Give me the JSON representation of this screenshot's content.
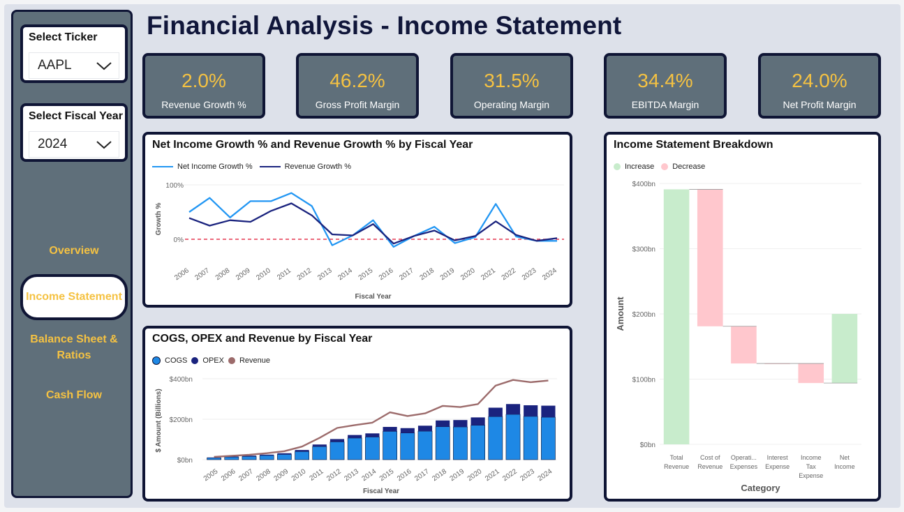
{
  "title": "Financial Analysis - Income Statement",
  "sidebar": {
    "ticker": {
      "label": "Select Ticker",
      "value": "AAPL"
    },
    "year": {
      "label": "Select Fiscal Year",
      "value": "2024"
    },
    "nav": {
      "overview": "Overview",
      "income": "Income Statement",
      "balance_line1": "Balance Sheet &",
      "balance_line2": "Ratios",
      "cashflow": "Cash Flow"
    }
  },
  "kpis": [
    {
      "value": "2.0%",
      "label": "Revenue Growth %"
    },
    {
      "value": "46.2%",
      "label": "Gross Profit Margin"
    },
    {
      "value": "31.5%",
      "label": "Operating Margin"
    },
    {
      "value": "34.4%",
      "label": "EBITDA Margin"
    },
    {
      "value": "24.0%",
      "label": "Net Profit Margin"
    }
  ],
  "colors": {
    "accent": "#f5c242",
    "navy": "#0f1535",
    "slate": "#5f6f7a",
    "net_income_line": "#2196f3",
    "revenue_line": "#1a237e",
    "cogs": "#1e88e5",
    "opex": "#1a237e",
    "revenue_curve": "#9c6b6b",
    "increase": "#c8eccc",
    "decrease": "#ffc7cd"
  },
  "chart_data": [
    {
      "type": "line",
      "title": "Net Income Growth % and Revenue Growth % by Fiscal Year",
      "xlabel": "Fiscal Year",
      "ylabel": "Growth %",
      "y_ticks": [
        "100%",
        "0%"
      ],
      "ylim": [
        -20,
        100
      ],
      "reference_line": 0,
      "x": [
        2006,
        2007,
        2008,
        2009,
        2010,
        2011,
        2012,
        2013,
        2014,
        2015,
        2016,
        2017,
        2018,
        2019,
        2020,
        2021,
        2022,
        2023,
        2024
      ],
      "series": [
        {
          "name": "Net Income Growth %",
          "values": [
            50,
            76,
            40,
            70,
            70,
            85,
            61,
            -11,
            7,
            35,
            -14,
            6,
            23,
            -7,
            4,
            65,
            5,
            -3,
            -3
          ]
        },
        {
          "name": "Revenue Growth %",
          "values": [
            39,
            25,
            35,
            32,
            52,
            66,
            44,
            9,
            7,
            28,
            -8,
            6,
            16,
            -2,
            6,
            33,
            8,
            -3,
            2
          ]
        }
      ],
      "legend": "top-left"
    },
    {
      "type": "bar",
      "title": "COGS, OPEX and Revenue by Fiscal Year",
      "xlabel": "Fiscal Year",
      "ylabel": "$ Amount (Billions)",
      "y_ticks": [
        "$400bn",
        "$200bn",
        "$0bn"
      ],
      "ylim": [
        0,
        400
      ],
      "categories": [
        "2005",
        "2006",
        "2007",
        "2008",
        "2009",
        "2010",
        "2011",
        "2012",
        "2013",
        "2014",
        "2015",
        "2016",
        "2017",
        "2018",
        "2019",
        "2020",
        "2021",
        "2022",
        "2023",
        "2024"
      ],
      "series": [
        {
          "name": "COGS",
          "type": "stacked-bar",
          "values": [
            9,
            13,
            16,
            21,
            26,
            40,
            65,
            88,
            107,
            112,
            140,
            132,
            141,
            163,
            162,
            170,
            213,
            224,
            214,
            210
          ]
        },
        {
          "name": "OPEX",
          "type": "stacked-bar",
          "values": [
            2,
            3,
            4,
            4,
            6,
            8,
            10,
            14,
            15,
            18,
            22,
            24,
            27,
            31,
            34,
            39,
            44,
            51,
            55,
            57
          ]
        },
        {
          "name": "Revenue",
          "type": "line",
          "values": [
            14,
            19,
            24,
            32,
            42,
            65,
            108,
            157,
            171,
            183,
            234,
            216,
            229,
            266,
            260,
            275,
            366,
            394,
            383,
            391
          ]
        }
      ],
      "legend": "top-left"
    },
    {
      "type": "waterfall",
      "title": "Income Statement Breakdown",
      "xlabel": "Category",
      "ylabel": "Amount",
      "y_ticks": [
        "$400bn",
        "$300bn",
        "$200bn",
        "$100bn",
        "$0bn"
      ],
      "ylim": [
        0,
        400
      ],
      "legend_items": [
        "Increase",
        "Decrease"
      ],
      "categories": [
        [
          "Total",
          "Revenue"
        ],
        [
          "Cost of",
          "Revenue"
        ],
        [
          "Operati...",
          "Expenses"
        ],
        [
          "Interest",
          "Expense"
        ],
        [
          "Income",
          "Tax",
          "Expense"
        ],
        [
          "Net",
          "Income"
        ]
      ],
      "values": [
        391,
        -210,
        -57,
        0,
        -30,
        94
      ],
      "kinds": [
        "increase",
        "decrease",
        "decrease",
        "decrease",
        "decrease",
        "increase"
      ]
    }
  ]
}
